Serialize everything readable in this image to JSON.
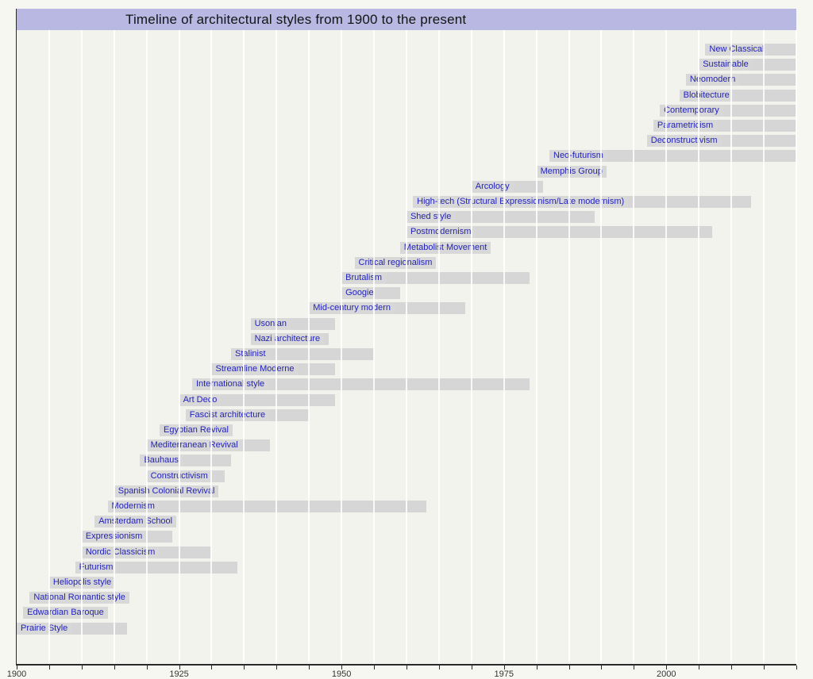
{
  "title": "Timeline of architectural styles from 1900 to the present",
  "colors": {
    "page_bg": "#f7f7f2",
    "title_bg": "#b8b8e2",
    "plot_bg": "#f3f3ee",
    "bar": "#d6d6d6",
    "bar_label_text": "#2222bb",
    "gridline": "#ffffff",
    "axis": "#2a2a2a"
  },
  "chart_data": {
    "type": "timeline",
    "title": "Timeline of architectural styles from 1900 to the present",
    "x_axis": {
      "range": [
        1900,
        2020
      ],
      "major_ticks": [
        1900,
        1925,
        1950,
        1975,
        2000
      ],
      "minor_tick_interval": 5,
      "grid": true
    },
    "legend": "none",
    "series": [
      {
        "label": "New Classical",
        "start": 2006,
        "end": 2020
      },
      {
        "label": "Sustainable",
        "start": 2005,
        "end": 2020
      },
      {
        "label": "Neomodern",
        "start": 2003,
        "end": 2020
      },
      {
        "label": "Blobitecture",
        "start": 2002,
        "end": 2020
      },
      {
        "label": "Contemporary",
        "start": 1999,
        "end": 2020
      },
      {
        "label": "Parametricism",
        "start": 1998,
        "end": 2020
      },
      {
        "label": "Deconstructivism",
        "start": 1997,
        "end": 2020
      },
      {
        "label": "Neo-futurism",
        "start": 1982,
        "end": 2020
      },
      {
        "label": "Memphis Group",
        "start": 1980,
        "end": 1990
      },
      {
        "label": "Arcology",
        "start": 1970,
        "end": 1981
      },
      {
        "label": "High-tech (Structural Expressionism/Late modernism)",
        "start": 1961,
        "end": 2013
      },
      {
        "label": "Shed style",
        "start": 1960,
        "end": 1989
      },
      {
        "label": "Postmodernism",
        "start": 1960,
        "end": 2007
      },
      {
        "label": "Metabolist Movement",
        "start": 1959,
        "end": 1970
      },
      {
        "label": "Critical regionalism",
        "start": 1952,
        "end": 1962
      },
      {
        "label": "Brutalism",
        "start": 1950,
        "end": 1979
      },
      {
        "label": "Googie",
        "start": 1950,
        "end": 1959
      },
      {
        "label": "Mid-century modern",
        "start": 1945,
        "end": 1969
      },
      {
        "label": "Usonian",
        "start": 1936,
        "end": 1949
      },
      {
        "label": "Nazi architecture",
        "start": 1936,
        "end": 1948
      },
      {
        "label": "Stalinist",
        "start": 1933,
        "end": 1955
      },
      {
        "label": "Streamline Moderne",
        "start": 1930,
        "end": 1949
      },
      {
        "label": "International style",
        "start": 1927,
        "end": 1979
      },
      {
        "label": "Art Deco",
        "start": 1925,
        "end": 1949
      },
      {
        "label": "Fascist architecture",
        "start": 1926,
        "end": 1945
      },
      {
        "label": "Egyptian Revival",
        "start": 1922,
        "end": 1933
      },
      {
        "label": "Mediterranean Revival",
        "start": 1920,
        "end": 1939
      },
      {
        "label": "Bauhaus",
        "start": 1919,
        "end": 1933
      },
      {
        "label": "Constructivism",
        "start": 1920,
        "end": 1932
      },
      {
        "label": "Spanish Colonial Revival",
        "start": 1915,
        "end": 1929
      },
      {
        "label": "Modernism",
        "start": 1914,
        "end": 1963
      },
      {
        "label": "Amsterdam School",
        "start": 1912,
        "end": 1924
      },
      {
        "label": "Expressionism",
        "start": 1910,
        "end": 1924
      },
      {
        "label": "Nordic Classicism",
        "start": 1910,
        "end": 1930
      },
      {
        "label": "Futurism",
        "start": 1909,
        "end": 1934
      },
      {
        "label": "Heliopolis style",
        "start": 1905,
        "end": 1915
      },
      {
        "label": "National Romantic style",
        "start": 1902,
        "end": 1916
      },
      {
        "label": "Edwardian Baroque",
        "start": 1901,
        "end": 1914
      },
      {
        "label": "Prairie Style",
        "start": 1900,
        "end": 1917
      }
    ]
  }
}
